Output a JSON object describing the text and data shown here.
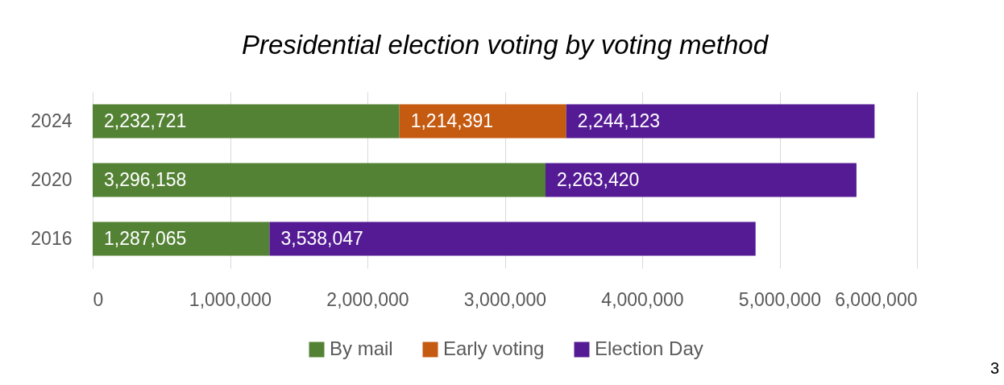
{
  "chart_data": {
    "type": "bar",
    "orientation": "horizontal",
    "stacked": true,
    "title": "Presidential election voting by voting method",
    "categories": [
      "2024",
      "2020",
      "2016"
    ],
    "series": [
      {
        "name": "By mail",
        "color": "#548235",
        "values": [
          2232721,
          3296158,
          1287065
        ],
        "value_labels": [
          "2,232,721",
          "3,296,158",
          "1,287,065"
        ]
      },
      {
        "name": "Early voting",
        "color": "#c55a11",
        "values": [
          1214391,
          null,
          null
        ],
        "value_labels": [
          "1,214,391",
          null,
          null
        ]
      },
      {
        "name": "Election Day",
        "color": "#541b94",
        "values": [
          2244123,
          2263420,
          3538047
        ],
        "value_labels": [
          "2,244,123",
          "2,263,420",
          "3,538,047"
        ]
      }
    ],
    "xlim": [
      0,
      6000000
    ],
    "xticks": [
      0,
      {
        "value": 1000000,
        "label": "1,000,000"
      },
      {
        "value": 2000000,
        "label": "2,000,000"
      },
      {
        "value": 3000000,
        "label": "3,000,000"
      },
      {
        "value": 4000000,
        "label": "4,000,000"
      },
      {
        "value": 5000000,
        "label": "5,000,000"
      },
      {
        "value": 6000000,
        "label": "6,000,000"
      }
    ],
    "grid": "x",
    "legend": "bottom",
    "annotations": [
      "3"
    ]
  }
}
